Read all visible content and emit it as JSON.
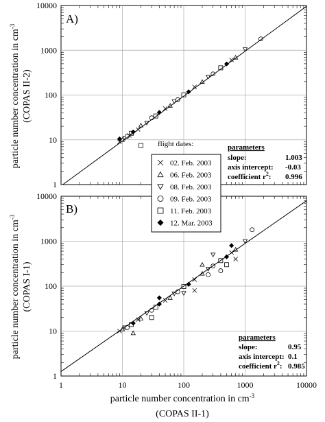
{
  "figure": {
    "ylabel_line1": "particle number concentration in cm",
    "ylabel_exp": "-3",
    "ylabel_top_instrument": "(COPAS II-2)",
    "ylabel_bottom_instrument": "(COPAS I-1)",
    "xlabel_line1": "particle number concentration in cm",
    "xlabel_exp": "-3",
    "xlabel_instrument": "(COPAS II-1)"
  },
  "legend": {
    "title": "flight dates:",
    "entries": [
      {
        "label": "02. Feb. 2003",
        "marker": "x"
      },
      {
        "label": "06. Feb. 2003",
        "marker": "triangle-up"
      },
      {
        "label": "08. Feb. 2003",
        "marker": "triangle-down"
      },
      {
        "label": "09. Feb. 2003",
        "marker": "circle"
      },
      {
        "label": "11. Feb. 2003",
        "marker": "square"
      },
      {
        "label": "12. Mar. 2003",
        "marker": "diamond-filled"
      }
    ]
  },
  "chart_data": [
    {
      "type": "scatter",
      "panel_label": "A)",
      "xscale": "log",
      "yscale": "log",
      "xlim": [
        1,
        10000
      ],
      "ylim": [
        1,
        10000
      ],
      "x_ticks": [
        "1",
        "10",
        "100",
        "1000",
        "10000"
      ],
      "y_ticks": [
        "1",
        "10",
        "100",
        "1000",
        "10000"
      ],
      "show_x_tick_labels": false,
      "grid": true,
      "fit_line": {
        "slope": 1.003,
        "intercept": -0.03
      },
      "parameters_title": "parameters",
      "parameters": [
        {
          "label": "slope:",
          "value": "1.003"
        },
        {
          "label": "axis intercept:",
          "value": "-0.03"
        },
        {
          "label": "coefficient r",
          "sup": "2",
          "suffix": ":",
          "value": "0.996"
        }
      ],
      "points": [
        [
          9,
          9
        ],
        [
          10,
          10
        ],
        [
          11,
          11
        ],
        [
          12,
          12
        ],
        [
          14,
          14
        ],
        [
          15,
          15
        ],
        [
          18,
          17
        ],
        [
          20,
          21
        ],
        [
          25,
          24
        ],
        [
          30,
          31
        ],
        [
          35,
          34
        ],
        [
          40,
          41
        ],
        [
          50,
          50
        ],
        [
          60,
          58
        ],
        [
          70,
          72
        ],
        [
          80,
          79
        ],
        [
          100,
          101
        ],
        [
          120,
          118
        ],
        [
          150,
          152
        ],
        [
          200,
          198
        ],
        [
          250,
          255
        ],
        [
          300,
          296
        ],
        [
          400,
          405
        ],
        [
          500,
          495
        ],
        [
          600,
          610
        ],
        [
          700,
          690
        ],
        [
          1000,
          1050
        ],
        [
          1800,
          1800
        ],
        [
          20,
          7.5
        ],
        [
          9,
          10.5
        ],
        [
          13,
          12.5
        ]
      ]
    },
    {
      "type": "scatter",
      "panel_label": "B)",
      "xscale": "log",
      "yscale": "log",
      "xlim": [
        1,
        10000
      ],
      "ylim": [
        1,
        10000
      ],
      "x_ticks": [
        "1",
        "10",
        "100",
        "1000",
        "10000"
      ],
      "y_ticks": [
        "1",
        "10",
        "100",
        "1000",
        "10000"
      ],
      "show_x_tick_labels": true,
      "grid": true,
      "fit_line": {
        "slope": 0.95,
        "intercept": 0.1
      },
      "parameters_title": "parameters",
      "parameters": [
        {
          "label": "slope:",
          "value": "0.95"
        },
        {
          "label": "axis intercept:",
          "value": "0.1"
        },
        {
          "label": "coefficient r",
          "sup": "2",
          "suffix": ":",
          "value": "0.985"
        }
      ],
      "points": [
        [
          9,
          10
        ],
        [
          10,
          11
        ],
        [
          11,
          12
        ],
        [
          12,
          12
        ],
        [
          14,
          14
        ],
        [
          15,
          15
        ],
        [
          18,
          18
        ],
        [
          20,
          19
        ],
        [
          25,
          25
        ],
        [
          30,
          29
        ],
        [
          35,
          34
        ],
        [
          40,
          40
        ],
        [
          50,
          48
        ],
        [
          60,
          55
        ],
        [
          70,
          68
        ],
        [
          80,
          75
        ],
        [
          100,
          98
        ],
        [
          120,
          110
        ],
        [
          150,
          140
        ],
        [
          200,
          190
        ],
        [
          250,
          240
        ],
        [
          300,
          280
        ],
        [
          400,
          370
        ],
        [
          500,
          450
        ],
        [
          600,
          560
        ],
        [
          700,
          650
        ],
        [
          1000,
          1000
        ],
        [
          1300,
          1800
        ],
        [
          30,
          20
        ],
        [
          40,
          55
        ],
        [
          150,
          80
        ],
        [
          200,
          300
        ],
        [
          300,
          500
        ],
        [
          400,
          220
        ],
        [
          500,
          300
        ],
        [
          600,
          800
        ],
        [
          700,
          400
        ],
        [
          15,
          9
        ],
        [
          100,
          70
        ],
        [
          250,
          180
        ]
      ]
    }
  ]
}
